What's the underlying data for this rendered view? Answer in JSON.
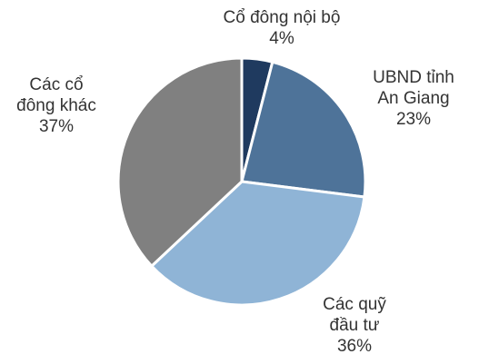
{
  "chart_data": {
    "type": "pie",
    "categories": [
      "Cổ đông nội bộ",
      "UBND tỉnh An Giang",
      "Các quỹ đầu tư",
      "Các cổ đông khác"
    ],
    "values": [
      4,
      23,
      36,
      37
    ],
    "value_labels": [
      "4%",
      "23%",
      "36%",
      "37%"
    ],
    "colors": [
      "#1f3a5f",
      "#4e7399",
      "#8fb4d6",
      "#808080"
    ]
  }
}
